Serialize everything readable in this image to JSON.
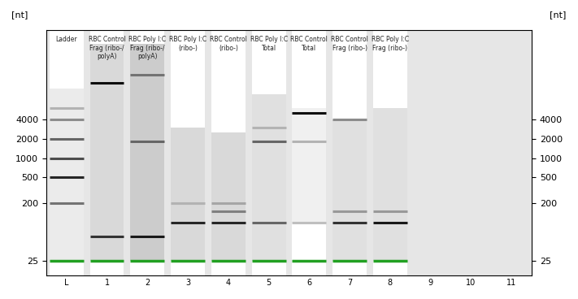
{
  "chart_data": {
    "type": "gel",
    "y_label": "[nt]",
    "categories": [
      "L",
      "1",
      "2",
      "3",
      "4",
      "5",
      "6",
      "7",
      "8",
      "9",
      "10",
      "11"
    ],
    "lane_names": [
      "Ladder",
      "RBC Control Frag (ribo-/ polyA)",
      "RBC Poly I:C Frag (ribo-/ polyA)",
      "RBC Poly I:C (ribo-)",
      "RBC Control (ribo-)",
      "RBC Poly I:C Total",
      "RBC Control Total",
      "RBC Control Frag (ribo-)",
      "RBC Poly I:C Frag (ribo-)",
      null,
      null,
      null
    ],
    "log": "y",
    "ylim": [
      15,
      100000
    ],
    "yticks": [
      25,
      200,
      500,
      1000,
      2000,
      4000
    ],
    "grid": false,
    "lower_marker": 25,
    "lower_marker_color": "#22a022",
    "lanes": [
      {
        "bands": [
          [
            200,
            0.55
          ],
          [
            500,
            0.85
          ],
          [
            1000,
            0.7
          ],
          [
            2000,
            0.6
          ],
          [
            4000,
            0.45
          ],
          [
            6000,
            0.3
          ]
        ],
        "smear": [
          25,
          12000
        ],
        "smear_intensity": 0.08
      },
      {
        "bands": [
          [
            15000,
            0.95
          ],
          [
            60,
            0.8
          ]
        ],
        "smear": [
          25,
          60000
        ],
        "smear_intensity": 0.15
      },
      {
        "bands": [
          [
            20000,
            0.55
          ],
          [
            1800,
            0.6
          ],
          [
            60,
            0.9
          ]
        ],
        "smear": [
          25,
          60000
        ],
        "smear_intensity": 0.2
      },
      {
        "bands": [
          [
            100,
            0.85
          ],
          [
            200,
            0.3
          ]
        ],
        "smear": [
          25,
          3000
        ],
        "smear_intensity": 0.15
      },
      {
        "bands": [
          [
            100,
            0.85
          ],
          [
            150,
            0.5
          ],
          [
            200,
            0.35
          ]
        ],
        "smear": [
          25,
          2500
        ],
        "smear_intensity": 0.15
      },
      {
        "bands": [
          [
            3000,
            0.3
          ],
          [
            1800,
            0.6
          ],
          [
            100,
            0.6
          ]
        ],
        "smear": [
          25,
          10000
        ],
        "smear_intensity": 0.12
      },
      {
        "bands": [
          [
            5000,
            0.95
          ],
          [
            1800,
            0.3
          ],
          [
            100,
            0.25
          ]
        ],
        "smear": [
          100,
          6000
        ],
        "smear_intensity": 0.06
      },
      {
        "bands": [
          [
            4000,
            0.45
          ],
          [
            100,
            0.8
          ],
          [
            150,
            0.4
          ]
        ],
        "smear": [
          25,
          4000
        ],
        "smear_intensity": 0.12
      },
      {
        "bands": [
          [
            100,
            0.9
          ],
          [
            150,
            0.4
          ]
        ],
        "smear": [
          25,
          6000
        ],
        "smear_intensity": 0.12
      },
      {
        "bands": [],
        "smear": null,
        "smear_intensity": 0
      },
      {
        "bands": [],
        "smear": null,
        "smear_intensity": 0
      },
      {
        "bands": [],
        "smear": null,
        "smear_intensity": 0
      }
    ]
  }
}
